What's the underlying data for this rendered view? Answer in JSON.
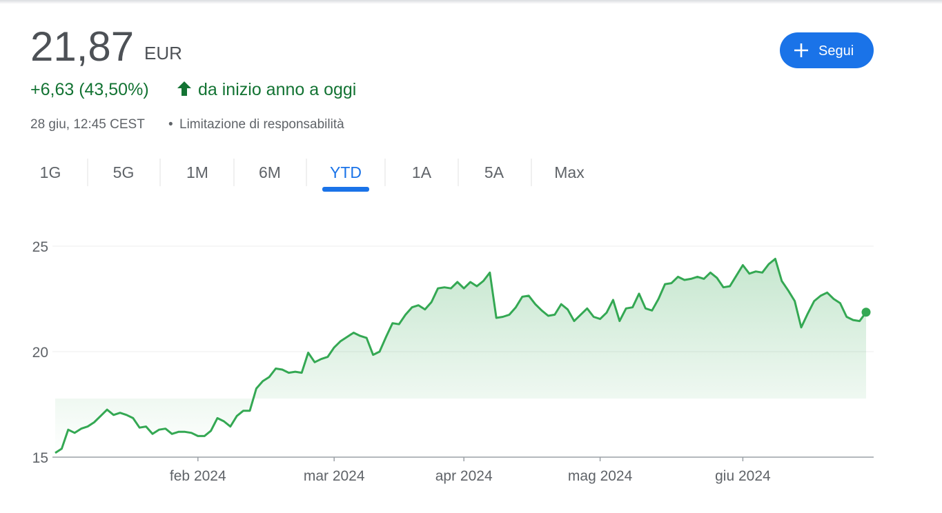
{
  "header": {
    "price": "21,87",
    "currency": "EUR",
    "change": "+6,63 (43,50%)",
    "change_label": "da inizio anno a oggi",
    "timestamp": "28 giu, 12:45 CEST",
    "separator": "•",
    "disclaimer": "Limitazione di responsabilità"
  },
  "follow_button": "Segui",
  "tabs": [
    "1G",
    "5G",
    "1M",
    "6M",
    "YTD",
    "1A",
    "5A",
    "Max"
  ],
  "active_tab": 4,
  "chart_data": {
    "type": "line",
    "color": "#34a853",
    "grid": true,
    "values": [
      15.2,
      15.4,
      16.3,
      16.15,
      16.35,
      16.45,
      16.65,
      16.95,
      17.25,
      17.0,
      17.1,
      17.0,
      16.85,
      16.4,
      16.45,
      16.1,
      16.3,
      16.35,
      16.1,
      16.2,
      16.2,
      16.15,
      16.0,
      16.0,
      16.25,
      16.85,
      16.7,
      16.45,
      16.95,
      17.2,
      17.2,
      18.25,
      18.6,
      18.8,
      19.2,
      19.15,
      19.0,
      19.05,
      19.0,
      19.95,
      19.5,
      19.65,
      19.75,
      20.2,
      20.5,
      20.7,
      20.9,
      20.75,
      20.65,
      19.85,
      20.0,
      20.7,
      21.35,
      21.3,
      21.75,
      22.1,
      22.2,
      22.0,
      22.35,
      23.0,
      23.05,
      23.0,
      23.3,
      23.0,
      23.3,
      23.1,
      23.35,
      23.75,
      21.6,
      21.65,
      21.75,
      22.1,
      22.6,
      22.65,
      22.25,
      21.95,
      21.7,
      21.75,
      22.25,
      22.0,
      21.45,
      21.75,
      22.05,
      21.65,
      21.55,
      21.85,
      22.45,
      21.45,
      22.05,
      22.1,
      22.75,
      22.05,
      21.95,
      22.5,
      23.2,
      23.25,
      23.55,
      23.4,
      23.45,
      23.55,
      23.45,
      23.75,
      23.5,
      23.05,
      23.1,
      23.6,
      24.1,
      23.7,
      23.8,
      23.75,
      24.15,
      24.4,
      23.35,
      22.9,
      22.4,
      21.15,
      21.8,
      22.4,
      22.65,
      22.8,
      22.5,
      22.3,
      21.65,
      21.5,
      21.45,
      21.87
    ],
    "xlim": [
      0,
      125
    ],
    "xticks": [
      {
        "value": 22,
        "label": "feb 2024"
      },
      {
        "value": 43,
        "label": "mar 2024"
      },
      {
        "value": 63,
        "label": "apr 2024"
      },
      {
        "value": 84,
        "label": "mag 2024"
      },
      {
        "value": 106,
        "label": "giu 2024"
      }
    ],
    "ylim": [
      15,
      25
    ],
    "yticks": [
      15,
      20,
      25
    ]
  }
}
